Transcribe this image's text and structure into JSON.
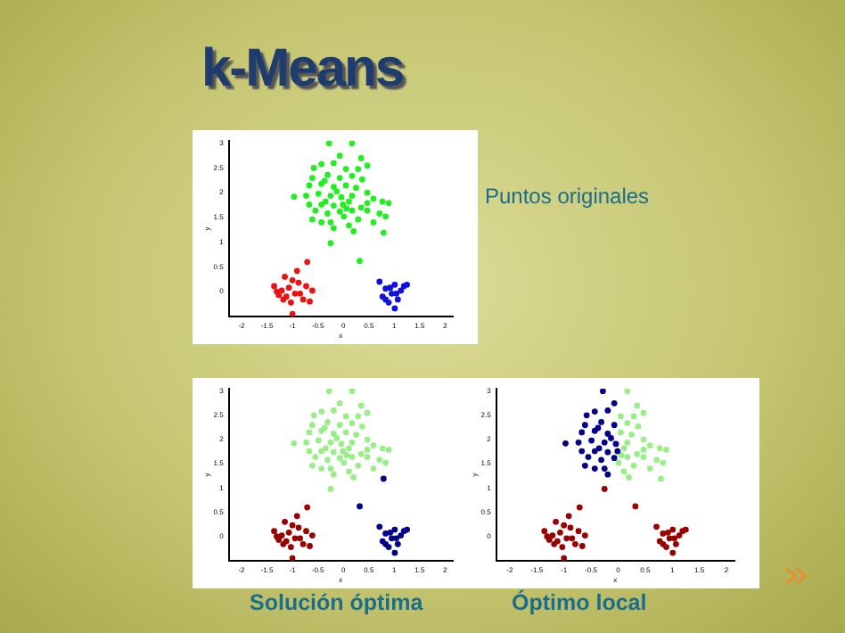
{
  "chart_data": [
    {
      "type": "scatter",
      "title": "k-Means",
      "annotations": [
        "Puntos originales"
      ],
      "xlabel": "x",
      "ylabel": "y",
      "marker": "circle",
      "xlim": [
        -2.25,
        2.15
      ],
      "ylim": [
        -0.5,
        3.05
      ],
      "xticks": [
        -2,
        -1.5,
        -1,
        -0.5,
        0,
        0.5,
        1,
        1.5,
        2
      ],
      "yticks": [
        0,
        0.5,
        1,
        1.5,
        2,
        2.5,
        3
      ],
      "series": [
        {
          "color": "#22ee22",
          "x": [
            -0.28,
            0.17,
            -0.07,
            0.35,
            -0.58,
            -0.43,
            -0.19,
            0.05,
            0.47,
            -0.61,
            -0.31,
            -0.07,
            0.17,
            0.37,
            -0.67,
            -0.43,
            -0.19,
            0.05,
            0.25,
            0.47,
            -0.97,
            -0.49,
            -0.25,
            -0.04,
            0.17,
            0.59,
            0.77,
            -0.67,
            -0.43,
            -0.19,
            0.06,
            0.35,
            0.89,
            -0.55,
            -0.31,
            -0.07,
            0.17,
            0.47,
            0.71,
            -0.61,
            -0.25,
            0.01,
            0.29,
            0.83,
            -0.43,
            -0.19,
            0.11,
            0.59,
            -0.25,
            0.2,
            0.79,
            0.32,
            -0.37,
            -0.13,
            0.11,
            -0.73,
            0.29,
            0.47,
            -0.01,
            -0.35
          ],
          "values": [
            3.0,
            3.0,
            2.75,
            2.7,
            2.5,
            2.58,
            2.6,
            2.48,
            2.55,
            2.3,
            2.36,
            2.3,
            2.34,
            2.27,
            2.15,
            2.18,
            2.12,
            2.15,
            2.1,
            2.0,
            1.92,
            1.98,
            1.94,
            1.91,
            1.94,
            1.88,
            1.82,
            1.76,
            1.76,
            1.74,
            1.68,
            1.7,
            1.79,
            1.64,
            1.58,
            1.62,
            1.64,
            1.64,
            1.58,
            1.46,
            1.4,
            1.52,
            1.46,
            1.52,
            1.4,
            1.28,
            1.34,
            1.4,
            0.98,
            1.22,
            1.19,
            0.62,
            2.24,
            2.03,
            1.82,
            1.94,
            2.48,
            1.79,
            1.76,
            1.82
          ]
        },
        {
          "color": "#ee1111",
          "x": [
            -0.71,
            -0.91,
            -1.15,
            -1.0,
            -1.36,
            -1.21,
            -1.07,
            -0.88,
            -0.73,
            -1.27,
            -1.12,
            -0.95,
            -0.79,
            -0.61,
            -0.85,
            -1.18,
            -1.03,
            -1.0,
            -0.66,
            -1.31
          ],
          "values": [
            0.6,
            0.42,
            0.3,
            0.23,
            0.11,
            0.02,
            0.08,
            0.18,
            0.11,
            -0.07,
            -0.1,
            -0.04,
            -0.16,
            0.02,
            -0.04,
            -0.16,
            -0.22,
            -0.45,
            -0.2,
            0.0
          ]
        },
        {
          "color": "#1111dd",
          "x": [
            0.71,
            0.83,
            1.01,
            1.19,
            0.95,
            0.77,
            1.07,
            0.89,
            1.01,
            1.25,
            1.13,
            0.92,
            1.04,
            0.83
          ],
          "values": [
            0.2,
            0.06,
            0.14,
            0.11,
            -0.04,
            -0.1,
            -0.16,
            -0.22,
            -0.34,
            0.14,
            0.02,
            0.08,
            -0.04,
            -0.16
          ]
        }
      ]
    },
    {
      "type": "scatter",
      "annotations": [
        "Solución óptima"
      ],
      "xlabel": "x",
      "ylabel": "y",
      "marker": "circle",
      "xlim": [
        -2.25,
        2.15
      ],
      "ylim": [
        -0.5,
        3.05
      ],
      "xticks": [
        -2,
        -1.5,
        -1,
        -0.5,
        0,
        0.5,
        1,
        1.5,
        2
      ],
      "yticks": [
        0,
        0.5,
        1,
        1.5,
        2,
        2.5,
        3
      ],
      "series": [
        {
          "color": "#99ee88",
          "x": [
            -0.28,
            0.17,
            -0.07,
            0.35,
            -0.58,
            -0.43,
            -0.19,
            0.05,
            0.47,
            -0.61,
            -0.31,
            -0.07,
            0.17,
            0.37,
            -0.67,
            -0.43,
            -0.19,
            0.05,
            0.25,
            0.47,
            -0.97,
            -0.49,
            -0.25,
            -0.04,
            0.17,
            0.59,
            0.77,
            -0.67,
            -0.43,
            -0.19,
            0.06,
            0.35,
            0.89,
            -0.55,
            -0.31,
            -0.07,
            0.17,
            0.47,
            0.71,
            -0.61,
            -0.25,
            0.01,
            0.29,
            0.83,
            -0.43,
            -0.19,
            0.11,
            0.59,
            -0.25,
            0.2,
            -0.37,
            -0.13,
            0.11,
            -0.73,
            0.29,
            0.47,
            -0.01,
            -0.35
          ],
          "values": [
            3.0,
            3.0,
            2.75,
            2.7,
            2.5,
            2.58,
            2.6,
            2.48,
            2.55,
            2.3,
            2.36,
            2.3,
            2.34,
            2.27,
            2.15,
            2.18,
            2.12,
            2.15,
            2.1,
            2.0,
            1.92,
            1.98,
            1.94,
            1.91,
            1.94,
            1.88,
            1.82,
            1.76,
            1.76,
            1.74,
            1.68,
            1.7,
            1.79,
            1.64,
            1.58,
            1.62,
            1.64,
            1.64,
            1.58,
            1.46,
            1.4,
            1.52,
            1.46,
            1.52,
            1.4,
            1.28,
            1.34,
            1.4,
            0.98,
            1.22,
            2.24,
            2.03,
            1.82,
            1.94,
            2.48,
            1.79,
            1.76,
            1.82
          ]
        },
        {
          "color": "#990000",
          "x": [
            -0.71,
            -0.91,
            -1.15,
            -1.0,
            -1.36,
            -1.21,
            -1.07,
            -0.88,
            -0.73,
            -1.27,
            -1.12,
            -0.95,
            -0.79,
            -0.61,
            -0.85,
            -1.18,
            -1.03,
            -1.0,
            -0.66,
            -1.31
          ],
          "values": [
            0.6,
            0.42,
            0.3,
            0.23,
            0.11,
            0.02,
            0.08,
            0.18,
            0.11,
            -0.07,
            -0.1,
            -0.04,
            -0.16,
            0.02,
            -0.04,
            -0.16,
            -0.22,
            -0.45,
            -0.2,
            0.0
          ]
        },
        {
          "color": "#000088",
          "x": [
            0.71,
            0.83,
            1.01,
            1.19,
            0.95,
            0.77,
            1.07,
            0.89,
            1.01,
            1.25,
            1.13,
            0.92,
            1.04,
            0.83,
            0.79,
            0.32
          ],
          "values": [
            0.2,
            0.06,
            0.14,
            0.11,
            -0.04,
            -0.1,
            -0.16,
            -0.22,
            -0.34,
            0.14,
            0.02,
            0.08,
            -0.04,
            -0.16,
            1.19,
            0.62
          ]
        }
      ]
    },
    {
      "type": "scatter",
      "annotations": [
        "Óptimo local"
      ],
      "xlabel": "x",
      "ylabel": "y",
      "marker": "circle",
      "xlim": [
        -2.25,
        2.15
      ],
      "ylim": [
        -0.5,
        3.05
      ],
      "xticks": [
        -2,
        -1.5,
        -1,
        -0.5,
        0,
        0.5,
        1,
        1.5,
        2
      ],
      "yticks": [
        0,
        0.5,
        1,
        1.5,
        2,
        2.5,
        3
      ],
      "series": [
        {
          "color": "#000088",
          "x": [
            -0.28,
            -0.07,
            -0.58,
            -0.43,
            -0.19,
            -0.61,
            -0.31,
            -0.07,
            -0.67,
            -0.43,
            -0.19,
            -0.97,
            -0.49,
            -0.25,
            -0.04,
            -0.67,
            -0.43,
            -0.19,
            -0.55,
            -0.31,
            -0.07,
            -0.61,
            -0.25,
            -0.43,
            -0.19,
            -0.37,
            -0.13,
            -0.73,
            -0.01,
            -0.35
          ],
          "values": [
            3.0,
            2.75,
            2.5,
            2.58,
            2.6,
            2.3,
            2.36,
            2.3,
            2.15,
            2.18,
            2.12,
            1.92,
            1.98,
            1.94,
            1.91,
            1.76,
            1.76,
            1.74,
            1.64,
            1.58,
            1.62,
            1.46,
            1.4,
            1.4,
            1.28,
            2.24,
            2.03,
            1.94,
            1.76,
            1.82
          ]
        },
        {
          "color": "#99ee88",
          "x": [
            0.17,
            0.35,
            0.05,
            0.47,
            0.17,
            0.37,
            0.05,
            0.25,
            0.47,
            0.17,
            0.59,
            0.77,
            0.06,
            0.35,
            0.89,
            0.17,
            0.47,
            0.71,
            0.01,
            0.29,
            0.83,
            0.11,
            0.59,
            0.2,
            0.79,
            0.11,
            0.29,
            0.47
          ],
          "values": [
            3.0,
            2.7,
            2.48,
            2.55,
            2.34,
            2.27,
            2.15,
            2.1,
            2.0,
            1.94,
            1.88,
            1.82,
            1.68,
            1.7,
            1.79,
            1.64,
            1.64,
            1.58,
            1.52,
            1.46,
            1.52,
            1.34,
            1.4,
            1.22,
            1.19,
            1.82,
            2.48,
            1.79
          ]
        },
        {
          "color": "#990000",
          "x": [
            -0.71,
            -0.91,
            -1.15,
            -1.0,
            -1.36,
            -1.21,
            -1.07,
            -0.88,
            -0.73,
            -1.27,
            -1.12,
            -0.95,
            -0.79,
            -0.61,
            -0.85,
            -1.18,
            -1.03,
            -1.0,
            -0.66,
            -1.31,
            0.71,
            0.83,
            1.01,
            1.19,
            0.95,
            0.77,
            1.07,
            0.89,
            1.01,
            1.25,
            1.13,
            0.92,
            1.04,
            0.83,
            -0.25,
            0.32
          ],
          "values": [
            0.6,
            0.42,
            0.3,
            0.23,
            0.11,
            0.02,
            0.08,
            0.18,
            0.11,
            -0.07,
            -0.1,
            -0.04,
            -0.16,
            0.02,
            -0.04,
            -0.16,
            -0.22,
            -0.45,
            -0.2,
            0.0,
            0.2,
            0.06,
            0.14,
            0.11,
            -0.04,
            -0.1,
            -0.16,
            -0.22,
            -0.34,
            0.14,
            0.02,
            0.08,
            -0.04,
            -0.16,
            0.98,
            0.62
          ]
        }
      ]
    }
  ]
}
